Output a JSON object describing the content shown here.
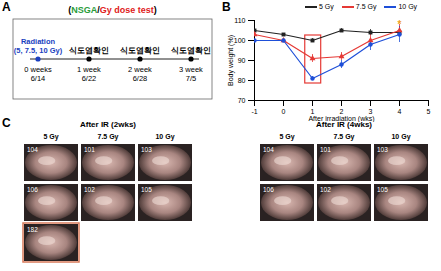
{
  "panel_labels": [
    "A",
    "B",
    "C"
  ],
  "panel_a": {
    "title_parts": [
      {
        "text": "(",
        "color": "#000000"
      },
      {
        "text": "NSGA",
        "color": "#2a9d3a"
      },
      {
        "text": "/",
        "color": "#000000"
      },
      {
        "text": "Gy dose test",
        "color": "#e02020"
      },
      {
        "text": ")",
        "color": "#000000"
      }
    ],
    "points": [
      {
        "above": [
          "Radiation",
          "(5, 7.5, 10 Gy)"
        ],
        "color": "#1a3fc0",
        "below": [
          "0 weeks",
          "6/14"
        ]
      },
      {
        "above": [
          "식도염확인"
        ],
        "color": "#000000",
        "below": [
          "1 week",
          "6/22"
        ]
      },
      {
        "above": [
          "식도염확인"
        ],
        "color": "#000000",
        "below": [
          "2 week",
          "6/28"
        ]
      },
      {
        "above": [
          "식도염확인"
        ],
        "color": "#000000",
        "below": [
          "3 week",
          "7/5"
        ]
      }
    ]
  },
  "chart_data": {
    "type": "line",
    "x_label": "After irradiation (wks)",
    "y_label": "Body weight (%)",
    "x": [
      -1,
      0,
      1,
      2,
      3,
      4
    ],
    "series": [
      {
        "name": "5 Gy",
        "color": "#222222",
        "marker": "square",
        "values": [
          105,
          103,
          100,
          105,
          104,
          104
        ],
        "errors": [
          0,
          0,
          1,
          1,
          1.5,
          2
        ]
      },
      {
        "name": "7.5 Gy",
        "color": "#e53935",
        "marker": "triangle",
        "values": [
          103,
          100,
          91,
          92,
          100,
          105
        ],
        "errors": [
          0,
          0,
          2,
          2,
          3,
          3
        ]
      },
      {
        "name": "10 Gy",
        "color": "#1e4fd8",
        "marker": "circle",
        "values": [
          100,
          100,
          81,
          88,
          98,
          103
        ],
        "errors": [
          0,
          0,
          1,
          2,
          3,
          4
        ]
      }
    ],
    "xlim": [
      -1,
      5
    ],
    "xticks": [
      -1,
      0,
      1,
      2,
      3,
      4,
      5
    ],
    "ylim": [
      70,
      110
    ],
    "yticks": [
      70,
      80,
      90,
      100,
      110
    ],
    "legend": "top",
    "highlight": {
      "x": 1,
      "color": "#e53935"
    },
    "annotations": [
      {
        "text": "*",
        "x": 4,
        "y": 108,
        "color": "#f0a020"
      }
    ]
  },
  "panel_c": {
    "groups": [
      {
        "title": "After IR (2wks)",
        "columns": [
          "5 Gy",
          "7.5 Gy",
          "10 Gy"
        ],
        "rows": [
          [
            "104",
            "101",
            "103"
          ],
          [
            "106",
            "102",
            "105"
          ],
          [
            "182",
            null,
            null
          ]
        ],
        "outlined": [
          "182"
        ]
      },
      {
        "title": "After IR (4wks)",
        "columns": [
          "5 Gy",
          "7.5 Gy",
          "10 Gy"
        ],
        "rows": [
          [
            "104",
            "101",
            "103"
          ],
          [
            "106",
            "102",
            "105"
          ]
        ],
        "outlined": []
      }
    ]
  }
}
